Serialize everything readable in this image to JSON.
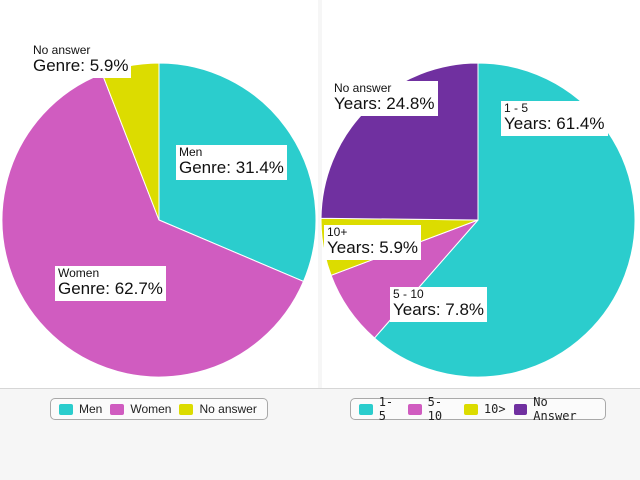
{
  "chart_data": [
    {
      "type": "pie",
      "slices": [
        {
          "name": "Men",
          "value": 31.4,
          "color": "#2bcdcd",
          "label_title": "Men",
          "label_value": "Genre: 31.4%"
        },
        {
          "name": "Women",
          "value": 62.7,
          "color": "#d05cc0",
          "label_title": "Women",
          "label_value": "Genre: 62.7%"
        },
        {
          "name": "No answer",
          "value": 5.9,
          "color": "#dcdc00",
          "label_title": "No answer",
          "label_value": "Genre: 5.9%"
        }
      ],
      "legend": {
        "placement": "bottom",
        "entries": [
          {
            "label": "Men",
            "color": "#2bcdcd"
          },
          {
            "label": "Women",
            "color": "#d05cc0"
          },
          {
            "label": "No answer",
            "color": "#dcdc00"
          }
        ]
      }
    },
    {
      "type": "pie",
      "slices": [
        {
          "name": "1 - 5",
          "value": 61.4,
          "color": "#2bcdcd",
          "label_title": "1 - 5",
          "label_value": "Years: 61.4%"
        },
        {
          "name": "5 - 10",
          "value": 7.8,
          "color": "#d05cc0",
          "label_title": "5 - 10",
          "label_value": "Years: 7.8%"
        },
        {
          "name": "10+",
          "value": 5.9,
          "color": "#dcdc00",
          "label_title": "10+",
          "label_value": "Years: 5.9%"
        },
        {
          "name": "No answer",
          "value": 24.8,
          "color": "#7030a0",
          "label_title": "No answer",
          "label_value": "Years: 24.8%"
        }
      ],
      "legend": {
        "placement": "bottom",
        "entries": [
          {
            "label": "1-5",
            "color": "#2bcdcd"
          },
          {
            "label": "5-10",
            "color": "#d05cc0"
          },
          {
            "label": "10>",
            "color": "#dcdc00"
          },
          {
            "label": "No Answer",
            "color": "#7030a0"
          }
        ]
      }
    }
  ]
}
